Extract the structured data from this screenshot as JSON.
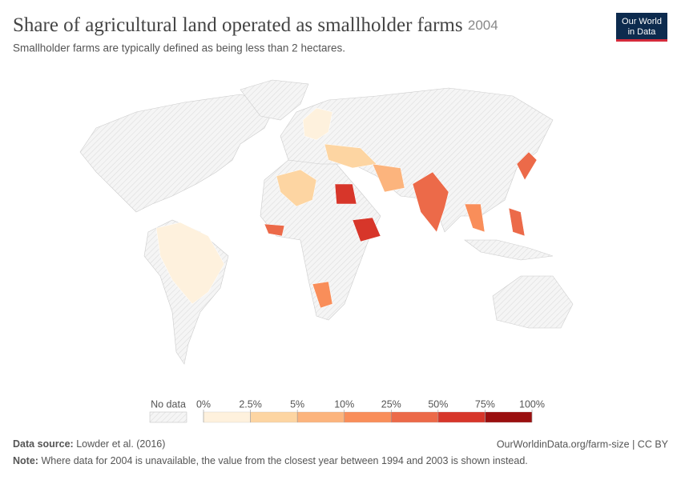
{
  "header": {
    "title": "Share of agricultural land operated as smallholder farms",
    "year": "2004",
    "subtitle": "Smallholder farms are typically defined as being less than 2 hectares.",
    "logo": [
      "Our World",
      "in Data"
    ]
  },
  "legend": {
    "no_data": "No data",
    "ticks": [
      {
        "value": 0,
        "label": "0%"
      },
      {
        "value": 2.5,
        "label": "2.5%"
      },
      {
        "value": 5,
        "label": "5%"
      },
      {
        "value": 10,
        "label": "10%"
      },
      {
        "value": 25,
        "label": "25%"
      },
      {
        "value": 50,
        "label": "50%"
      },
      {
        "value": 75,
        "label": "75%"
      },
      {
        "value": 100,
        "label": "100%"
      }
    ],
    "colors": [
      "#fef1dd",
      "#fdd5a2",
      "#fcb47d",
      "#f98e5a",
      "#ec6a49",
      "#d7362a",
      "#9a0f0f"
    ]
  },
  "footer": {
    "source_label": "Data source:",
    "source": "Lowder et al. (2016)",
    "url": "OurWorldinData.org/farm-size | CC BY",
    "note_label": "Note:",
    "note": "Where data for 2004 is unavailable, the value from the closest year between 1994 and 2003 is shown instead."
  }
}
